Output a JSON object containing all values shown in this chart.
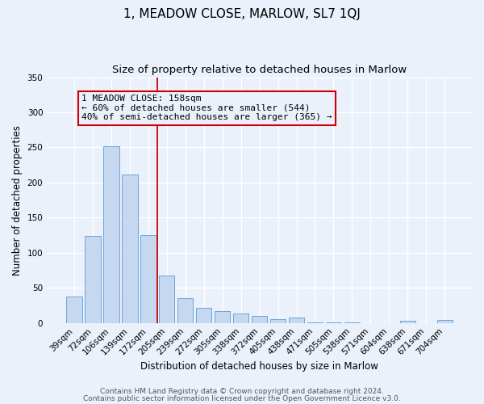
{
  "title": "1, MEADOW CLOSE, MARLOW, SL7 1QJ",
  "subtitle": "Size of property relative to detached houses in Marlow",
  "xlabel": "Distribution of detached houses by size in Marlow",
  "ylabel": "Number of detached properties",
  "bar_labels": [
    "39sqm",
    "72sqm",
    "106sqm",
    "139sqm",
    "172sqm",
    "205sqm",
    "239sqm",
    "272sqm",
    "305sqm",
    "338sqm",
    "372sqm",
    "405sqm",
    "438sqm",
    "471sqm",
    "505sqm",
    "538sqm",
    "571sqm",
    "604sqm",
    "638sqm",
    "671sqm",
    "704sqm"
  ],
  "bar_values": [
    38,
    124,
    252,
    211,
    125,
    67,
    35,
    21,
    17,
    13,
    10,
    5,
    8,
    1,
    1,
    1,
    0,
    0,
    3,
    0,
    4
  ],
  "bar_color": "#c5d8f0",
  "bar_edge_color": "#5b9bd5",
  "ylim": [
    0,
    350
  ],
  "yticks": [
    0,
    50,
    100,
    150,
    200,
    250,
    300,
    350
  ],
  "vline_x": 4.5,
  "vline_color": "#cc0000",
  "annotation_line1": "1 MEADOW CLOSE: 158sqm",
  "annotation_line2": "← 60% of detached houses are smaller (544)",
  "annotation_line3": "40% of semi-detached houses are larger (365) →",
  "annotation_box_color": "#cc0000",
  "footer_line1": "Contains HM Land Registry data © Crown copyright and database right 2024.",
  "footer_line2": "Contains public sector information licensed under the Open Government Licence v3.0.",
  "background_color": "#eaf1fb",
  "grid_color": "#ffffff",
  "title_fontsize": 11,
  "subtitle_fontsize": 9.5,
  "axis_label_fontsize": 8.5,
  "tick_fontsize": 7.5,
  "annotation_fontsize": 8,
  "footer_fontsize": 6.5
}
